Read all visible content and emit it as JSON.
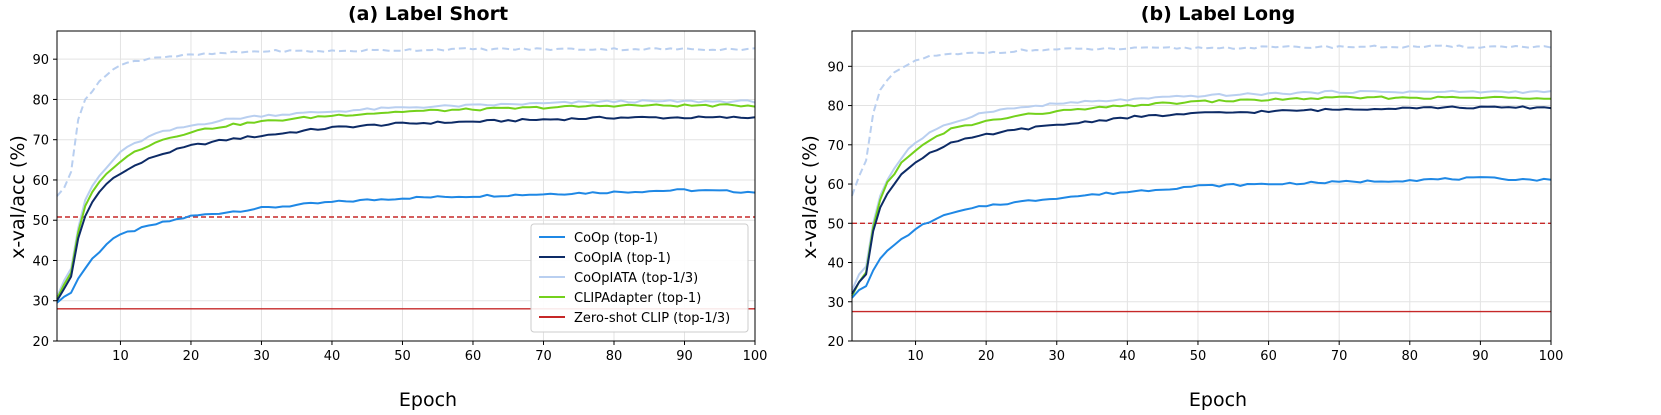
{
  "chart_data": [
    {
      "type": "line",
      "title": "(a) Label Short",
      "xlabel": "Epoch",
      "ylabel": "x-val/acc (%)",
      "xlim": [
        1,
        100
      ],
      "ylim": [
        20,
        97
      ],
      "xticks": [
        10,
        20,
        30,
        40,
        50,
        60,
        70,
        80,
        90,
        100
      ],
      "yticks": [
        20,
        30,
        40,
        50,
        60,
        70,
        80,
        90
      ],
      "grid": true,
      "legend": "lower-right",
      "keypoints": [
        1,
        2,
        3,
        4,
        5,
        6,
        7,
        8,
        9,
        10,
        12,
        15,
        20,
        25,
        30,
        40,
        50,
        60,
        70,
        80,
        90,
        100
      ],
      "series": [
        {
          "name": "CoOp (top-1)",
          "color": "#1f88e5",
          "style": "solid",
          "values": [
            29.5,
            31,
            32,
            35.5,
            38,
            40.5,
            42,
            44,
            45.5,
            46.5,
            47.5,
            49,
            51,
            52,
            53,
            54.5,
            55.5,
            56,
            56.5,
            57,
            57.5,
            57
          ]
        },
        {
          "name": "CoOpIA (top-1)",
          "color": "#0d2b66",
          "style": "solid",
          "values": [
            30,
            33,
            36,
            45.5,
            51,
            54.5,
            57,
            59,
            60.5,
            61.5,
            63.5,
            66,
            68.5,
            70,
            71,
            73,
            74,
            74.5,
            75,
            75.5,
            75.5,
            75.5
          ]
        },
        {
          "name": "CoOpIATA (top-1/3)",
          "color": "#b9cff0",
          "style": "solid",
          "values": [
            31,
            35,
            38,
            48,
            55,
            58.5,
            61,
            63,
            65,
            67,
            69,
            71.5,
            73.5,
            75,
            76,
            77,
            78,
            78.5,
            79,
            79.5,
            79.5,
            79.5
          ]
        },
        {
          "name": "CLIPAdapter (top-1)",
          "color": "#74d11c",
          "style": "solid",
          "values": [
            30.5,
            34,
            37,
            47,
            53.5,
            57,
            59.5,
            61.5,
            63,
            64.5,
            67,
            69.5,
            72,
            73.5,
            74.5,
            76,
            77,
            77.5,
            78,
            78.5,
            78.5,
            78.5
          ]
        },
        {
          "name": "CoOpIATA (top-3)",
          "color": "#b9cff0",
          "style": "dashed",
          "in_legend": false,
          "values": [
            56,
            58,
            62,
            75,
            80,
            82,
            84.5,
            86,
            87.5,
            88.5,
            89.5,
            90.5,
            91,
            91.5,
            92,
            92,
            92.3,
            92.5,
            92.5,
            92.5,
            92.5,
            92.5
          ]
        }
      ],
      "reference_lines": [
        {
          "name": "Zero-shot CLIP (top-1/3)",
          "color": "#c62828",
          "style": "solid",
          "value": 28
        },
        {
          "name": "Zero-shot CLIP (top-3)",
          "color": "#c62828",
          "style": "dashed",
          "in_legend": false,
          "value": 50.8
        }
      ]
    },
    {
      "type": "line",
      "title": "(b) Label Long",
      "xlabel": "Epoch",
      "ylabel": "x-val/acc (%)",
      "xlim": [
        1,
        100
      ],
      "ylim": [
        20,
        99
      ],
      "xticks": [
        10,
        20,
        30,
        40,
        50,
        60,
        70,
        80,
        90,
        100
      ],
      "yticks": [
        20,
        30,
        40,
        50,
        60,
        70,
        80,
        90
      ],
      "grid": true,
      "keypoints": [
        1,
        2,
        3,
        4,
        5,
        6,
        7,
        8,
        9,
        10,
        12,
        15,
        20,
        25,
        30,
        40,
        50,
        60,
        70,
        80,
        90,
        100
      ],
      "series": [
        {
          "name": "CoOp (top-1)",
          "color": "#1f88e5",
          "style": "solid",
          "values": [
            31,
            33,
            34,
            38,
            41,
            43,
            44.5,
            46,
            47,
            48.5,
            50.5,
            52.5,
            54.5,
            55.5,
            56.5,
            58,
            59.5,
            60,
            60.5,
            61,
            61.5,
            61
          ]
        },
        {
          "name": "CoOpIA (top-1)",
          "color": "#0d2b66",
          "style": "solid",
          "values": [
            32,
            35,
            37,
            48,
            54,
            57.5,
            60,
            62.5,
            64,
            65.5,
            68,
            70.5,
            72.5,
            74,
            75,
            77,
            78,
            78.5,
            79,
            79.5,
            79.5,
            79.5
          ]
        },
        {
          "name": "CoOpIATA (top-1/3)",
          "color": "#b9cff0",
          "style": "solid",
          "values": [
            33,
            37,
            39,
            50,
            57,
            61,
            64,
            66.5,
            69,
            70.5,
            73,
            75.5,
            78.5,
            79.5,
            80.5,
            81.5,
            82.5,
            83,
            83.5,
            83.5,
            83.5,
            83.5
          ]
        },
        {
          "name": "CLIPAdapter (top-1)",
          "color": "#74d11c",
          "style": "solid",
          "values": [
            31.5,
            35,
            37.5,
            49,
            56,
            60.5,
            62.5,
            65.5,
            67,
            68.5,
            71,
            74,
            76,
            77.5,
            78.5,
            80,
            81,
            81.5,
            82,
            82,
            82,
            82
          ]
        },
        {
          "name": "CoOpIATA (top-3)",
          "color": "#b9cff0",
          "style": "dashed",
          "in_legend": false,
          "values": [
            57,
            62,
            66,
            78,
            84,
            86.5,
            88.5,
            89.5,
            90.5,
            91.5,
            92.5,
            93,
            93.5,
            94,
            94.3,
            94.5,
            94.7,
            94.8,
            95,
            95,
            95,
            95
          ]
        }
      ],
      "reference_lines": [
        {
          "name": "Zero-shot CLIP (top-1/3)",
          "color": "#c62828",
          "style": "solid",
          "value": 27.5
        },
        {
          "name": "Zero-shot CLIP (top-3)",
          "color": "#c62828",
          "style": "dashed",
          "in_legend": false,
          "value": 50
        }
      ]
    }
  ]
}
